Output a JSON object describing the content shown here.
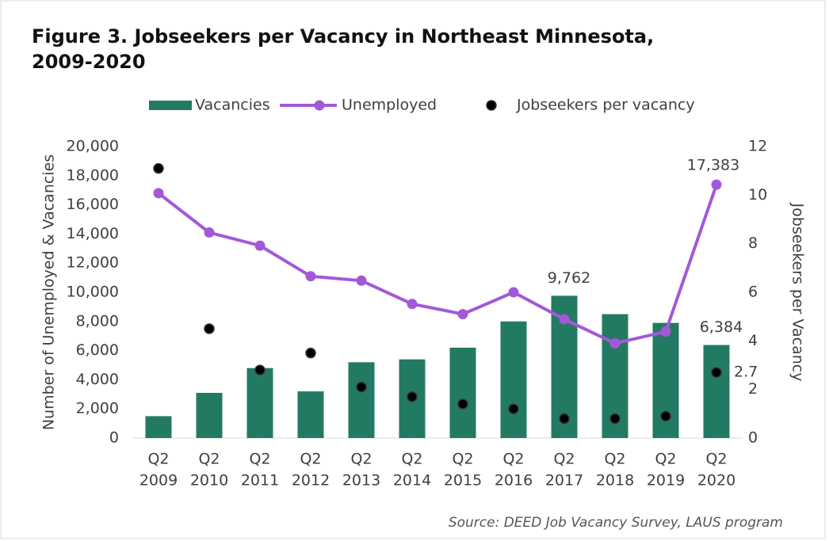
{
  "chart_data": {
    "type": "combo",
    "title": [
      "Figure 3. Jobseekers per Vacancy in Northeast Minnesota,",
      "2009-2020"
    ],
    "source": "Source: DEED Job Vacancy Survey, LAUS program",
    "ylabel": "Number of Unemployed & Vacancies",
    "y2label": "Jobseekers per Vacancy",
    "categories": [
      [
        "Q2",
        "2009"
      ],
      [
        "Q2",
        "2010"
      ],
      [
        "Q2",
        "2011"
      ],
      [
        "Q2",
        "2012"
      ],
      [
        "Q2",
        "2013"
      ],
      [
        "Q2",
        "2014"
      ],
      [
        "Q2",
        "2015"
      ],
      [
        "Q2",
        "2016"
      ],
      [
        "Q2",
        "2017"
      ],
      [
        "Q2",
        "2018"
      ],
      [
        "Q2",
        "2019"
      ],
      [
        "Q2",
        "2020"
      ]
    ],
    "series": [
      {
        "name": "Vacancies",
        "type": "bar",
        "color": "#237a63",
        "values": [
          1500,
          3100,
          4800,
          3200,
          5200,
          5400,
          6200,
          8000,
          9762,
          8500,
          7900,
          6384
        ],
        "value_labels": [
          null,
          null,
          null,
          null,
          null,
          null,
          null,
          null,
          "9,762",
          null,
          null,
          "6,384"
        ]
      },
      {
        "name": "Unemployed",
        "type": "line",
        "color": "#a259d9",
        "values": [
          16800,
          14100,
          13200,
          11100,
          10800,
          9200,
          8500,
          10000,
          8150,
          6500,
          7300,
          17383
        ],
        "value_labels": [
          null,
          null,
          null,
          null,
          null,
          null,
          null,
          null,
          null,
          null,
          null,
          "17,383"
        ]
      },
      {
        "name": "Jobseekers per vacancy",
        "type": "scatter",
        "color": "#000000",
        "axis": "y2",
        "values": [
          11.1,
          4.5,
          2.8,
          3.5,
          2.1,
          1.7,
          1.4,
          1.2,
          0.8,
          0.8,
          0.9,
          2.7
        ],
        "value_labels": [
          null,
          null,
          null,
          null,
          null,
          null,
          null,
          null,
          null,
          null,
          null,
          "2.7"
        ]
      }
    ],
    "ylim": [
      0,
      20000
    ],
    "yticks": [
      0,
      {
        "value": 2000,
        "label": "2,000"
      },
      {
        "value": 4000,
        "label": "4,000"
      },
      {
        "value": 6000,
        "label": "6,000"
      },
      {
        "value": 8000,
        "label": "8,000"
      },
      {
        "value": 10000,
        "label": "10,000"
      },
      {
        "value": 12000,
        "label": "12,000"
      },
      {
        "value": 14000,
        "label": "14,000"
      },
      {
        "value": 16000,
        "label": "16,000"
      },
      {
        "value": 18000,
        "label": "18,000"
      },
      {
        "value": 20000,
        "label": "20,000"
      }
    ],
    "y2lim": [
      0,
      12
    ],
    "y2ticks": [
      0,
      2,
      4,
      6,
      8,
      10,
      12
    ],
    "grid": false,
    "legend": "top"
  }
}
